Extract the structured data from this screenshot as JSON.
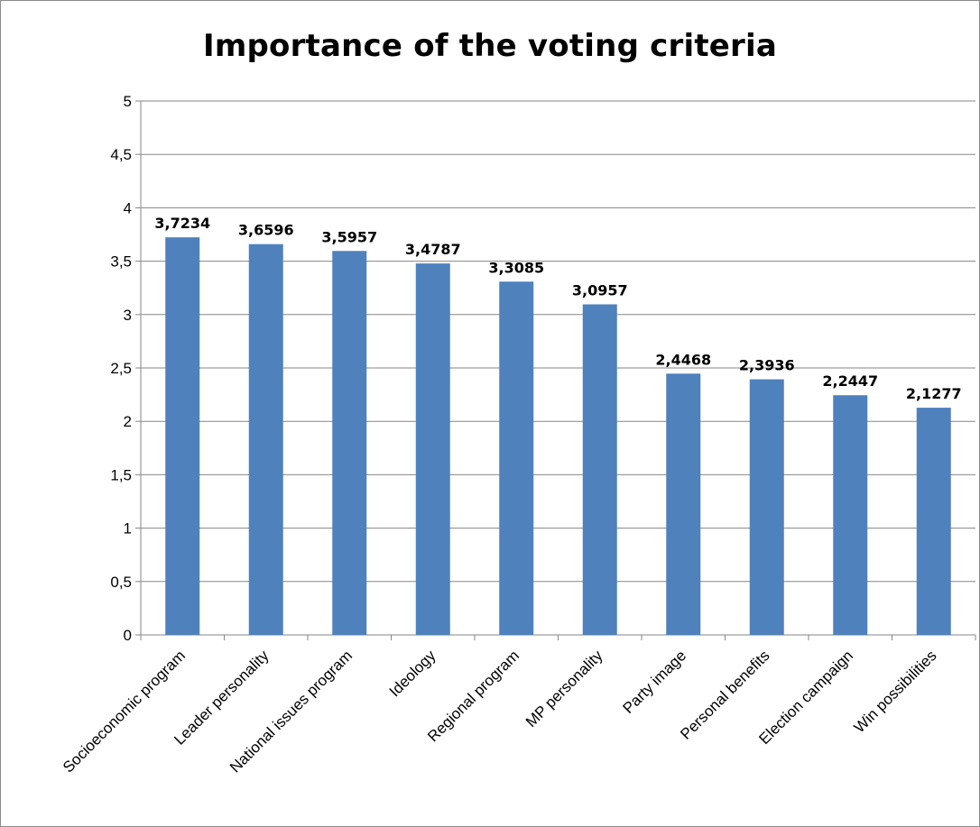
{
  "chart_data": {
    "type": "bar",
    "title": "Importance of the voting criteria",
    "categories": [
      "Socioeconomic program",
      "Leader personality",
      "National issues program",
      "Ideology",
      "Regional program",
      "MP personality",
      "Party image",
      "Personal benefits",
      "Election campaign",
      "Win possibilities"
    ],
    "values": [
      3.7234,
      3.6596,
      3.5957,
      3.4787,
      3.3085,
      3.0957,
      2.4468,
      2.3936,
      2.2447,
      2.1277
    ],
    "data_labels": [
      "3,7234",
      "3,6596",
      "3,5957",
      "3,4787",
      "3,3085",
      "3,0957",
      "2,4468",
      "2,3936",
      "2,2447",
      "2,1277"
    ],
    "ylim": [
      0,
      5
    ],
    "y_ticks": [
      0,
      0.5,
      1,
      1.5,
      2,
      2.5,
      3,
      3.5,
      4,
      4.5,
      5
    ],
    "y_tick_labels": [
      "0",
      "0,5",
      "1",
      "1,5",
      "2",
      "2,5",
      "3",
      "3,5",
      "4",
      "4,5",
      "5"
    ],
    "grid": true,
    "legend": "none",
    "bar_color": "#4f81bd",
    "xlabel": "",
    "ylabel": ""
  }
}
